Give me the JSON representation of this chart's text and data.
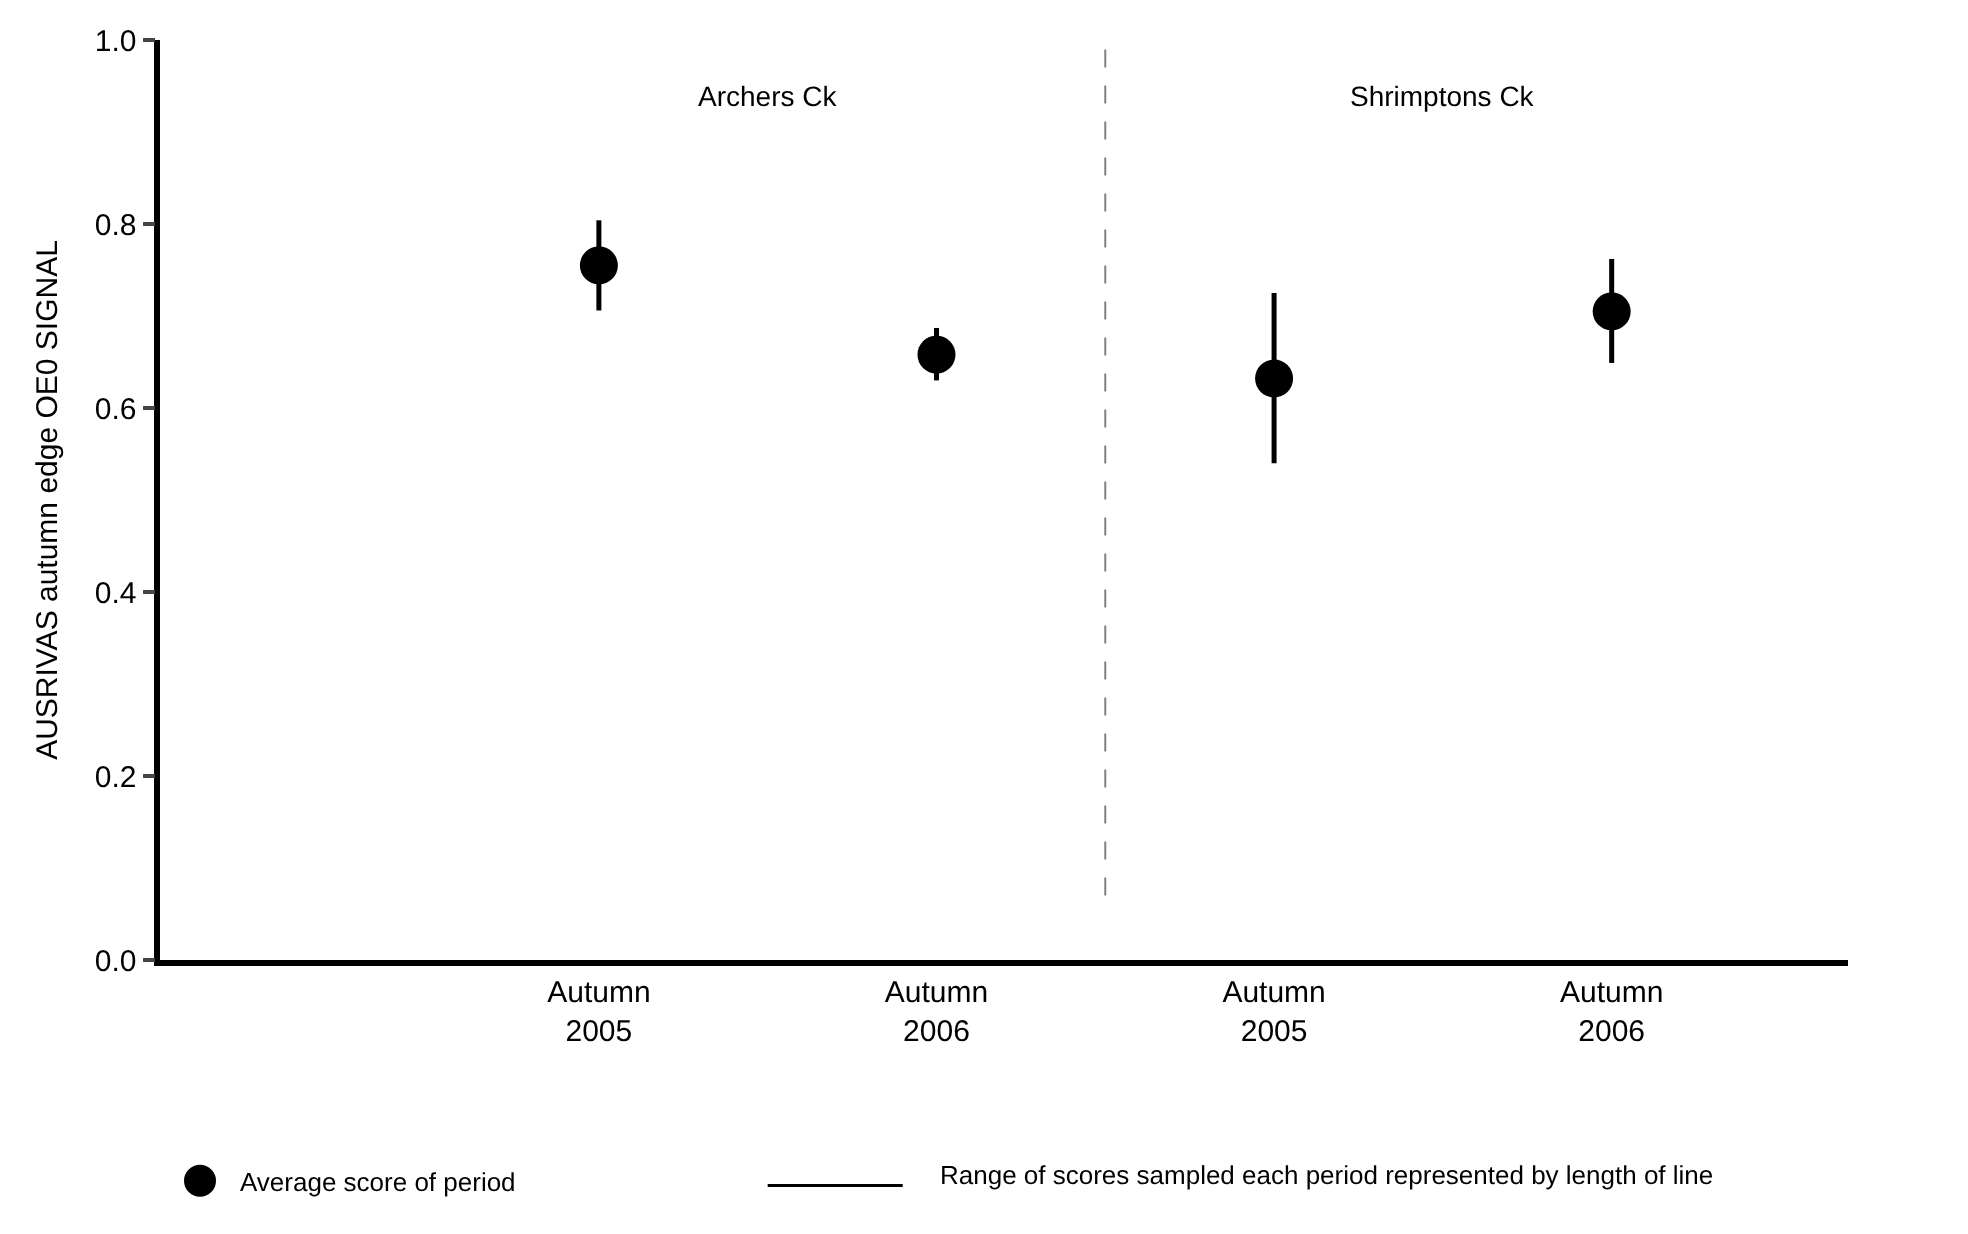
{
  "chart_data": {
    "type": "scatter",
    "ylabel": "AUSRIVAS autumn edge OE0 SIGNAL",
    "categories": [
      "Autumn\n2005",
      "Autumn\n2006",
      "Autumn\n2005",
      "Autumn\n2006"
    ],
    "series": [
      {
        "name": "Average score of period",
        "color": "#000000",
        "values": [
          0.755,
          0.658,
          0.632,
          0.705
        ],
        "errors": [
          [
            0.706,
            0.804
          ],
          [
            0.63,
            0.687
          ],
          [
            0.54,
            0.725
          ],
          [
            0.649,
            0.762
          ]
        ]
      }
    ],
    "ylim": [
      0,
      1.0
    ],
    "yticks": [
      {
        "value": 0,
        "label": "0.0"
      },
      0.2,
      0.4,
      0.6,
      0.8,
      {
        "value": 1,
        "label": "1.0"
      }
    ],
    "annotations": [
      "Archers Ck",
      "Shrimptons Ck",
      "Range of scores sampled each period represented by length of line"
    ],
    "marker": "circle",
    "legend": "bottom left"
  }
}
